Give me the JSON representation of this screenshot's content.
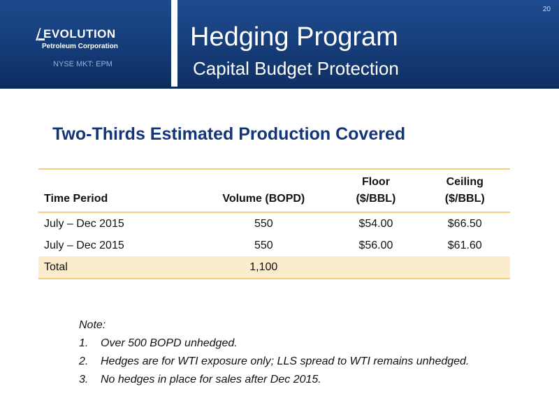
{
  "header": {
    "logo_word": "EVOLUTION",
    "logo_sub": "Petroleum Corporation",
    "ticker": "NYSE MKT: EPM",
    "title": "Hedging Program",
    "subtitle": "Capital Budget Protection",
    "page_number": "20"
  },
  "colors": {
    "banner": "#173f7c",
    "heading": "#12357a",
    "table_rule": "#f2cf7c",
    "total_row": "#fbeccc"
  },
  "content": {
    "heading": "Two-Thirds Estimated Production Covered",
    "table": {
      "columns": [
        {
          "line1": "",
          "line2": "Time Period"
        },
        {
          "line1": "",
          "line2": "Volume (BOPD)"
        },
        {
          "line1": "Floor",
          "line2": "($/BBL)"
        },
        {
          "line1": "Ceiling",
          "line2": "($/BBL)"
        }
      ],
      "rows": [
        {
          "period": "July – Dec 2015",
          "volume": "550",
          "floor": "$54.00",
          "ceiling": "$66.50"
        },
        {
          "period": "July – Dec 2015",
          "volume": "550",
          "floor": "$56.00",
          "ceiling": "$61.60"
        }
      ],
      "total": {
        "label": "Total",
        "volume": "1,100",
        "floor": "",
        "ceiling": ""
      }
    },
    "notes": {
      "title": "Note:",
      "items": [
        {
          "num": "1.",
          "text": "Over 500 BOPD unhedged."
        },
        {
          "num": "2.",
          "text": "Hedges are for WTI exposure only; LLS spread to WTI remains unhedged."
        },
        {
          "num": "3.",
          "text": "No hedges in place for sales after Dec 2015."
        }
      ]
    }
  }
}
